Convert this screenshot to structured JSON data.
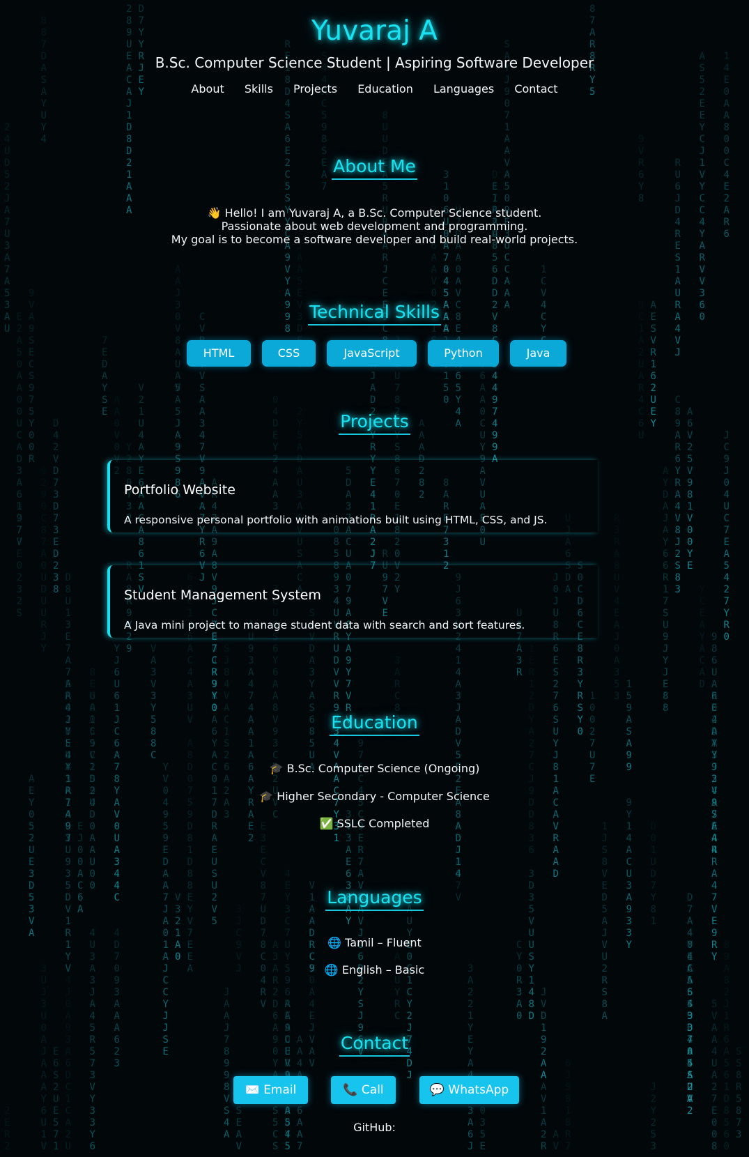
{
  "header": {
    "name": "Yuvaraj A",
    "subtitle": "B.Sc. Computer Science Student | Aspiring Software Developer",
    "nav": [
      "About",
      "Skills",
      "Projects",
      "Education",
      "Languages",
      "Contact"
    ]
  },
  "about": {
    "heading": "About Me",
    "lines": [
      "👋 Hello! I am Yuvaraj A, a B.Sc. Computer Science student.",
      "Passionate about web development and programming.",
      "My goal is to become a software developer and build real-world projects."
    ]
  },
  "skills": {
    "heading": "Technical Skills",
    "items": [
      "HTML",
      "CSS",
      "JavaScript",
      "Python",
      "Java"
    ]
  },
  "projects": {
    "heading": "Projects",
    "items": [
      {
        "title": "Portfolio Website",
        "description": "A responsive personal portfolio with animations built using HTML, CSS, and JS."
      },
      {
        "title": "Student Management System",
        "description": "A Java mini project to manage student data with search and sort features."
      }
    ]
  },
  "education": {
    "heading": "Education",
    "items": [
      "🎓 B.Sc. Computer Science (Ongoing)",
      "🎓 Higher Secondary - Computer Science",
      "✅ SSLC Completed"
    ]
  },
  "languages": {
    "heading": "Languages",
    "items": [
      "🌐 Tamil – Fluent",
      "🌐 English – Basic"
    ]
  },
  "contact": {
    "heading": "Contact",
    "email": "✉️ Email",
    "call": "📞 Call",
    "whatsapp": "💬 WhatsApp",
    "github": "GitHub:"
  },
  "colors": {
    "background": "#02070a",
    "accent": "#19e3f2",
    "button": "#0aa9d8",
    "contact_button": "#16c4ee",
    "rain": "#14a9b7"
  }
}
